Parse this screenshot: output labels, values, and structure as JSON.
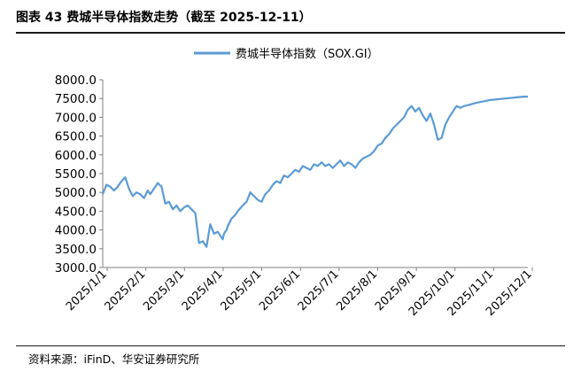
{
  "figure": {
    "title": "图表 43 费城半导体指数走势（截至 2025-12-11）",
    "source": "资料来源：iFinD、华安证券研究所"
  },
  "chart_data": {
    "type": "line",
    "title": "图表 43 费城半导体指数走势（截至 2025-12-11）",
    "xlabel": "",
    "ylabel": "",
    "ylim": [
      3000,
      8000
    ],
    "yticks": [
      "3000.0",
      "3500.0",
      "4000.0",
      "4500.0",
      "5000.0",
      "5500.0",
      "6000.0",
      "6500.0",
      "7000.0",
      "7500.0",
      "8000.0"
    ],
    "xticks": [
      "2025/1/1",
      "2025/2/1",
      "2025/3/1",
      "2025/4/1",
      "2025/5/1",
      "2025/6/1",
      "2025/7/1",
      "2025/8/1",
      "2025/9/1",
      "2025/10/1",
      "2025/11/1",
      "2025/12/1"
    ],
    "legend_position": "top-center",
    "color": "#5b9bd5",
    "series": [
      {
        "name": "费城半导体指数（SOX.GI）",
        "x": [
          0,
          3,
          6,
          9,
          12,
          15,
          18,
          21,
          24,
          27,
          30,
          33,
          36,
          38,
          41,
          44,
          47,
          50,
          53,
          56,
          59,
          62,
          65,
          68,
          71,
          74,
          77,
          80,
          83,
          86,
          89,
          92,
          95,
          96,
          97,
          99,
          100,
          103,
          106,
          108,
          112,
          115,
          118,
          121,
          124,
          127,
          130,
          133,
          136,
          139,
          142,
          145,
          148,
          151,
          154,
          157,
          160,
          163,
          166,
          169,
          172,
          175,
          178,
          181,
          184,
          187,
          190,
          193,
          196,
          199,
          202,
          205,
          208,
          211,
          214,
          217,
          220,
          223,
          226,
          229,
          232,
          235,
          238,
          241,
          244,
          247,
          250,
          253,
          256,
          259,
          262,
          265,
          268,
          271,
          274,
          277,
          280,
          283,
          286,
          289,
          292,
          295,
          298,
          301,
          304,
          307,
          310,
          313,
          316,
          319,
          322,
          325,
          328,
          331,
          334,
          337,
          340
        ],
        "values": [
          4950,
          5200,
          5150,
          5050,
          5150,
          5300,
          5400,
          5100,
          4900,
          5000,
          4950,
          4850,
          5050,
          4950,
          5100,
          5250,
          5150,
          4700,
          4750,
          4550,
          4650,
          4500,
          4600,
          4650,
          4550,
          4450,
          3650,
          3700,
          3550,
          4150,
          3900,
          3950,
          3800,
          3750,
          3900,
          4000,
          4100,
          4300,
          4400,
          4500,
          4650,
          4750,
          5000,
          4900,
          4800,
          4750,
          4950,
          5050,
          5200,
          5300,
          5250,
          5450,
          5400,
          5500,
          5600,
          5550,
          5700,
          5650,
          5600,
          5750,
          5700,
          5800,
          5700,
          5750,
          5650,
          5750,
          5850,
          5700,
          5800,
          5750,
          5650,
          5800,
          5900,
          5950,
          6000,
          6100,
          6250,
          6300,
          6450,
          6550,
          6700,
          6800,
          6900,
          7000,
          7200,
          7300,
          7150,
          7250,
          7050,
          6900,
          7100,
          6800,
          6400,
          6450,
          6800,
          7000,
          7150,
          7300,
          7250,
          7300,
          7320,
          7350,
          7380,
          7400,
          7420,
          7440,
          7460,
          7470,
          7480,
          7490,
          7500,
          7510,
          7520,
          7530,
          7540,
          7550,
          7550
        ]
      }
    ]
  }
}
